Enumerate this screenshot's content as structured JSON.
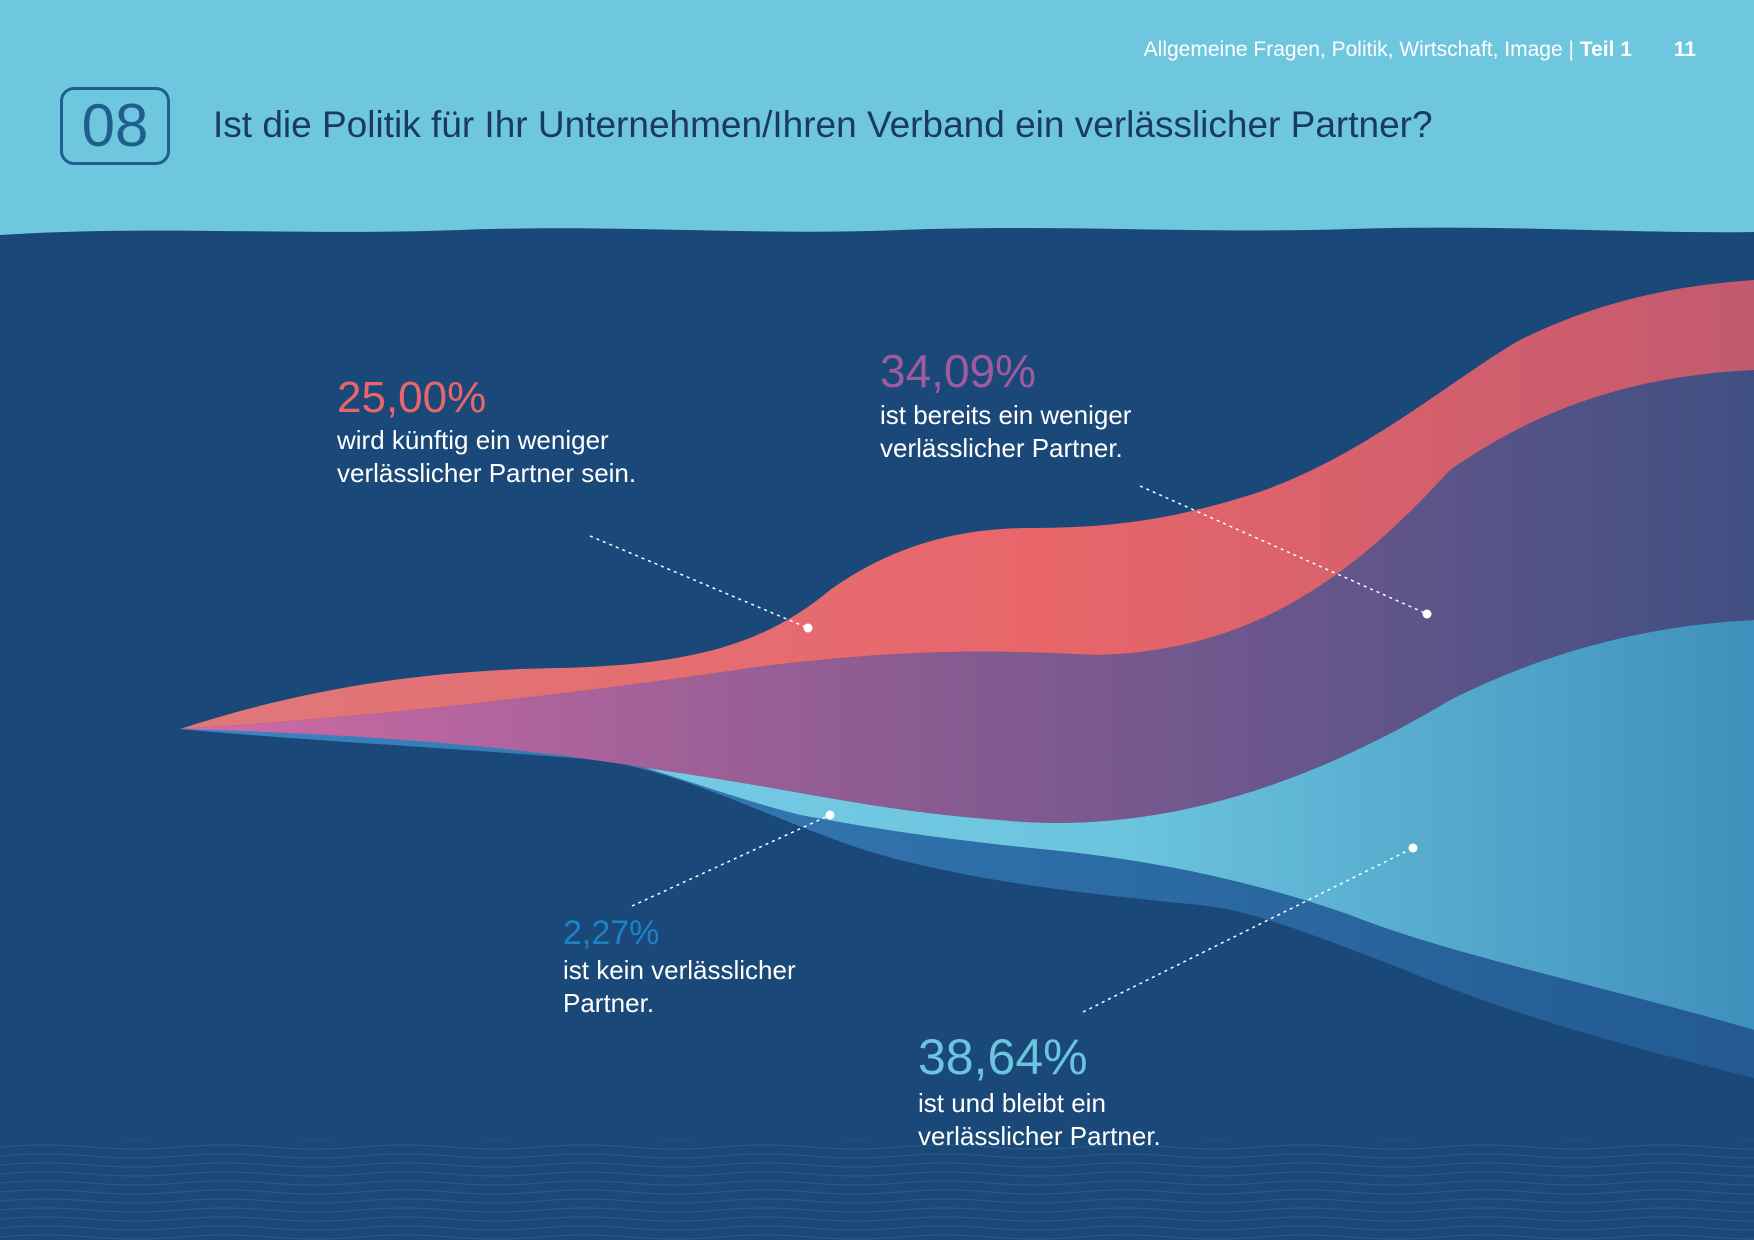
{
  "header": {
    "section": "Allgemeine Fragen, Politik, Wirtschaft, Image",
    "separator": "|",
    "part": "Teil 1",
    "page_number": "11"
  },
  "question": {
    "number": "08",
    "text": "Ist die Politik für Ihr Unternehmen/Ihren Verband ein verlässlicher Partner?"
  },
  "labels": {
    "future": {
      "percent": "25,00%",
      "line1": "wird künftig ein weniger",
      "line2": "verlässlicher Partner sein."
    },
    "already": {
      "percent": "34,09%",
      "line1": "ist bereits ein weniger",
      "line2": "verlässlicher Partner."
    },
    "never": {
      "percent": "2,27%",
      "line1": "ist kein verlässlicher",
      "line2": "Partner."
    },
    "remains": {
      "percent": "38,64%",
      "line1": "ist und bleibt ein",
      "line2": "verlässlicher Partner."
    }
  },
  "colors": {
    "sky": "#6fc6df",
    "navy": "#1a4878",
    "coral": "#e8666a",
    "purple": "#a05a9e",
    "light_blue": "#6cc4de",
    "mid_blue": "#2f74ad",
    "title_text": "#1a3a66",
    "box": "#1f5f8e"
  },
  "chart_data": {
    "type": "area",
    "title": "Ist die Politik für Ihr Unternehmen/Ihren Verband ein verlässlicher Partner?",
    "unit": "%",
    "series": [
      {
        "label": "wird künftig ein weniger verlässlicher Partner sein.",
        "value": 25.0,
        "color": "#e8666a"
      },
      {
        "label": "ist bereits ein weniger verlässlicher Partner.",
        "value": 34.09,
        "color": "#a05a9e"
      },
      {
        "label": "ist und bleibt ein verlässlicher Partner.",
        "value": 38.64,
        "color": "#6cc4de"
      },
      {
        "label": "ist kein verlässlicher Partner.",
        "value": 2.27,
        "color": "#2f74ad"
      }
    ]
  }
}
